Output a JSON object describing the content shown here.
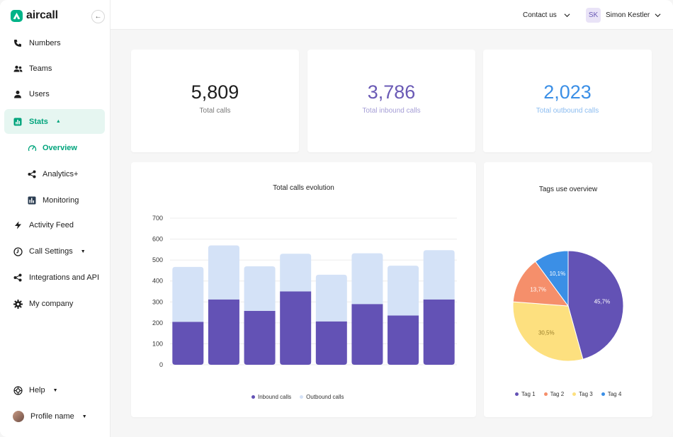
{
  "app": {
    "name": "aircall"
  },
  "sidebar": {
    "collapse_glyph": "←",
    "items": [
      {
        "label": "Numbers",
        "icon": "phone-icon"
      },
      {
        "label": "Teams",
        "icon": "people-icon"
      },
      {
        "label": "Users",
        "icon": "user-icon"
      },
      {
        "label": "Stats",
        "icon": "bar-chart-icon",
        "active": true
      },
      {
        "label": "Activity Feed",
        "icon": "bolt-icon"
      },
      {
        "label": "Call Settings",
        "icon": "clock-icon"
      },
      {
        "label": "Integrations and API",
        "icon": "share-icon"
      },
      {
        "label": "My company",
        "icon": "gear-icon"
      }
    ],
    "stats_sub": [
      {
        "label": "Overview",
        "icon": "gauge-icon",
        "active": true
      },
      {
        "label": "Analytics+",
        "icon": "share-icon"
      },
      {
        "label": "Monitoring",
        "icon": "monitor-icon"
      }
    ],
    "bottom": [
      {
        "label": "Help",
        "icon": "lifebuoy-icon"
      },
      {
        "label": "Profile name",
        "icon": "avatar"
      }
    ]
  },
  "header": {
    "contact_label": "Contact us",
    "user_initials": "SK",
    "user_name": "Simon Kestler"
  },
  "stats": [
    {
      "value": "5,809",
      "label": "Total calls",
      "value_color": "#1e1e1e",
      "label_color": "#7a7a7a"
    },
    {
      "value": "3,786",
      "label": "Total inbound calls",
      "value_color": "#6a5ab5",
      "label_color": "#a59ed6"
    },
    {
      "value": "2,023",
      "label": "Total outbound calls",
      "value_color": "#3b8fe6",
      "label_color": "#8bbcf0"
    }
  ],
  "chart_data": [
    {
      "type": "bar",
      "stacked": true,
      "title": "Total calls evolution",
      "ylim": [
        0,
        700
      ],
      "yticks": [
        0,
        100,
        200,
        300,
        400,
        500,
        600,
        700
      ],
      "grid": true,
      "legend_position": "bottom",
      "series": [
        {
          "name": "Inbound calls",
          "color": "#6352b5",
          "values": [
            205,
            312,
            257,
            350,
            207,
            290,
            235,
            312
          ]
        },
        {
          "name": "Outbound calls",
          "color": "#d4e2f7",
          "values": [
            262,
            258,
            213,
            180,
            223,
            242,
            238,
            235
          ]
        }
      ]
    },
    {
      "type": "pie",
      "title": "Tags use overview",
      "legend_position": "bottom",
      "slices": [
        {
          "name": "Tag 1",
          "value": 45.7,
          "label": "45,7%",
          "color": "#6352b5"
        },
        {
          "name": "Tag 3",
          "value": 30.5,
          "label": "30,5%",
          "color": "#fde07f"
        },
        {
          "name": "Tag 2",
          "value": 13.7,
          "label": "13,7%",
          "color": "#f58f6b"
        },
        {
          "name": "Tag 4",
          "value": 10.1,
          "label": "10,1%",
          "color": "#3b8fe6"
        }
      ],
      "legend": [
        {
          "name": "Tag 1",
          "color": "#6352b5"
        },
        {
          "name": "Tag 2",
          "color": "#f58f6b"
        },
        {
          "name": "Tag 3",
          "color": "#fde07f"
        },
        {
          "name": "Tag 4",
          "color": "#3b8fe6"
        }
      ]
    }
  ]
}
